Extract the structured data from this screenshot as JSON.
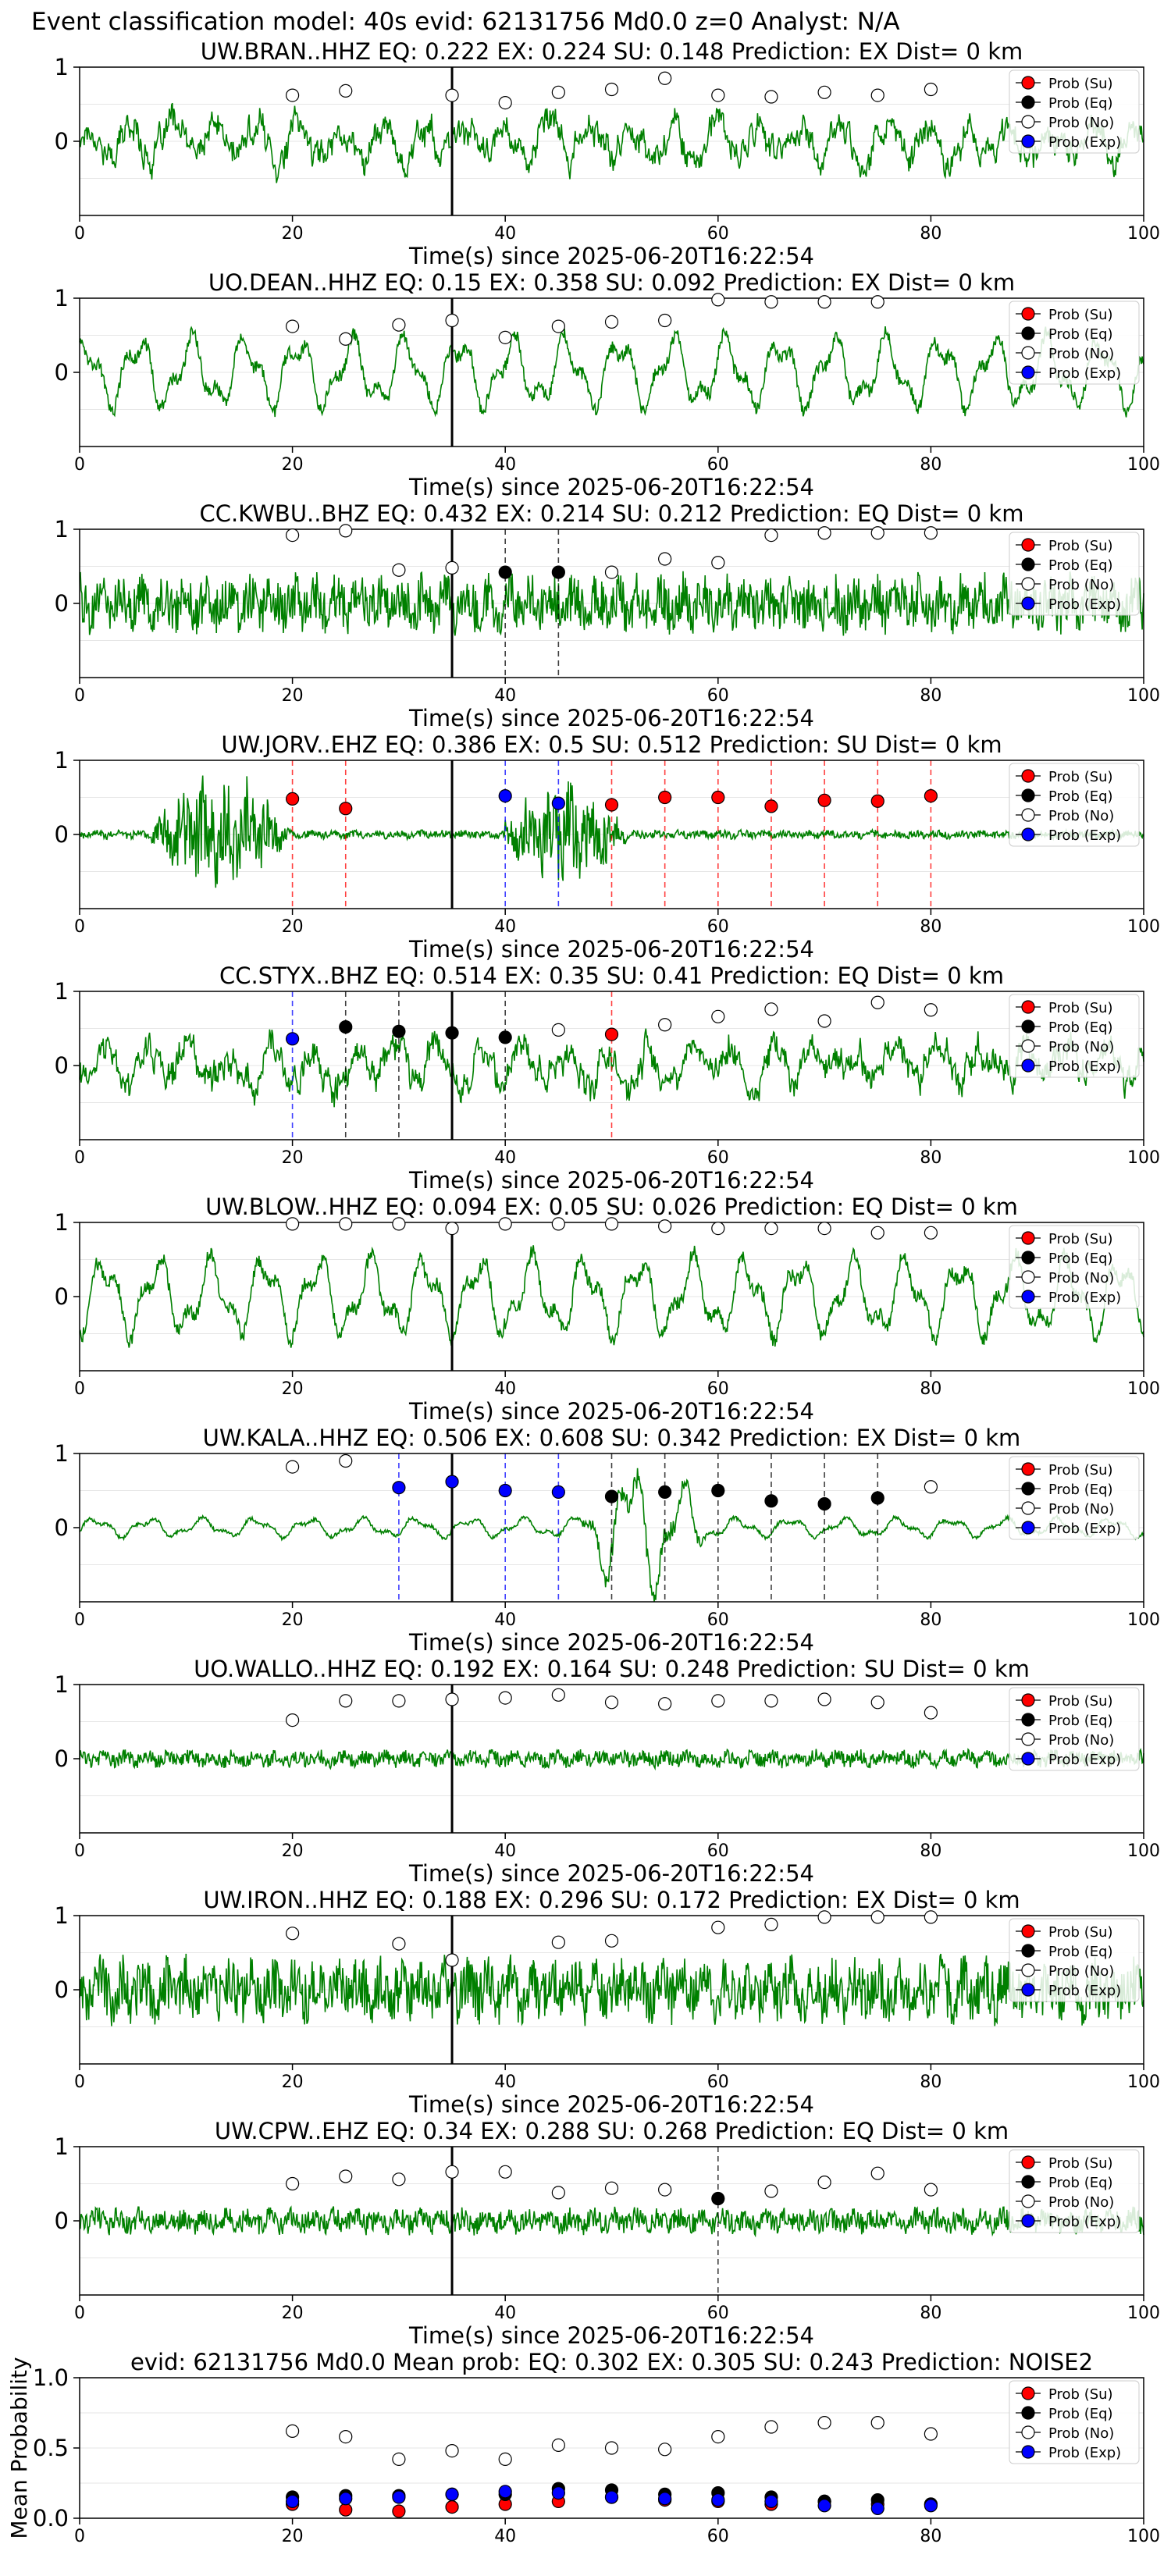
{
  "figure": {
    "suptitle": "Event classification model: 40s evid: 62131756 Md0.0 z=0 Analyst: N/A"
  },
  "colors": {
    "waveform": "#008000",
    "su": "#ff0000",
    "eq": "#000000",
    "no": "#ffffff",
    "exp": "#0000ff",
    "vline": "#000000"
  },
  "legend_labels": [
    "Prob (Su)",
    "Prob (Eq)",
    "Prob (No)",
    "Prob (Exp)"
  ],
  "chart_data": [
    {
      "type": "scatter",
      "station": "UW.BRAN..HHZ",
      "title": "UW.BRAN..HHZ   EQ: 0.222  EX: 0.224  SU: 0.148   Prediction: EX    Dist= 0 km",
      "xlabel": "Time(s) since 2025-06-20T16:22:54",
      "xlim": [
        0,
        100
      ],
      "ylim": [
        -1,
        1
      ],
      "xticks": [
        0,
        20,
        40,
        60,
        80,
        100
      ],
      "yticks": [
        0,
        1
      ],
      "event_marker_x": 35,
      "noise_amp": 0.42,
      "style": "mixed",
      "noise_prob": [
        [
          20,
          0.62
        ],
        [
          25,
          0.68
        ],
        [
          35,
          0.62
        ],
        [
          40,
          0.52
        ],
        [
          45,
          0.66
        ],
        [
          50,
          0.7
        ],
        [
          55,
          0.85
        ],
        [
          60,
          0.62
        ],
        [
          65,
          0.6
        ],
        [
          70,
          0.66
        ],
        [
          75,
          0.62
        ],
        [
          80,
          0.7
        ]
      ],
      "su_prob": [],
      "eq_prob": [],
      "exp_prob": [],
      "su_lines": [],
      "eq_lines": [],
      "exp_lines": []
    },
    {
      "type": "scatter",
      "station": "UO.DEAN..HHZ",
      "title": "UO.DEAN..HHZ   EQ: 0.15  EX: 0.358  SU: 0.092   Prediction: EX    Dist= 0 km",
      "xlabel": "Time(s) since 2025-06-20T16:22:54",
      "xlim": [
        0,
        100
      ],
      "ylim": [
        -1,
        1
      ],
      "xticks": [
        0,
        20,
        40,
        60,
        80,
        100
      ],
      "yticks": [
        0,
        1
      ],
      "event_marker_x": 35,
      "noise_amp": 0.5,
      "style": "smooth",
      "noise_prob": [
        [
          20,
          0.62
        ],
        [
          25,
          0.45
        ],
        [
          30,
          0.64
        ],
        [
          35,
          0.7
        ],
        [
          40,
          0.47
        ],
        [
          45,
          0.62
        ],
        [
          50,
          0.68
        ],
        [
          55,
          0.7
        ],
        [
          60,
          0.98
        ],
        [
          65,
          0.95
        ],
        [
          70,
          0.95
        ],
        [
          75,
          0.95
        ]
      ],
      "su_prob": [],
      "eq_prob": [],
      "exp_prob": [],
      "su_lines": [],
      "eq_lines": [],
      "exp_lines": []
    },
    {
      "type": "scatter",
      "station": "CC.KWBU..BHZ",
      "title": "CC.KWBU..BHZ   EQ: 0.432  EX: 0.214  SU: 0.212   Prediction: EQ    Dist= 0 km",
      "xlabel": "Time(s) since 2025-06-20T16:22:54",
      "xlim": [
        0,
        100
      ],
      "ylim": [
        -1,
        1
      ],
      "xticks": [
        0,
        20,
        40,
        60,
        80,
        100
      ],
      "yticks": [
        0,
        1
      ],
      "event_marker_x": 35,
      "noise_amp": 0.4,
      "style": "noisy",
      "noise_prob": [
        [
          20,
          0.92
        ],
        [
          25,
          0.98
        ],
        [
          30,
          0.45
        ],
        [
          35,
          0.48
        ],
        [
          50,
          0.42
        ],
        [
          55,
          0.6
        ],
        [
          60,
          0.55
        ],
        [
          65,
          0.92
        ],
        [
          70,
          0.95
        ],
        [
          75,
          0.95
        ],
        [
          80,
          0.95
        ]
      ],
      "su_prob": [],
      "eq_prob": [
        [
          40,
          0.42
        ],
        [
          45,
          0.42
        ]
      ],
      "exp_prob": [],
      "su_lines": [],
      "eq_lines": [
        40,
        45
      ],
      "exp_lines": []
    },
    {
      "type": "scatter",
      "station": "UW.JORV..EHZ",
      "title": "UW.JORV..EHZ   EQ: 0.386  EX: 0.5  SU: 0.512   Prediction: SU    Dist= 0 km",
      "xlabel": "Time(s) since 2025-06-20T16:22:54",
      "xlim": [
        0,
        100
      ],
      "ylim": [
        -1,
        1
      ],
      "xticks": [
        0,
        20,
        40,
        60,
        80,
        100
      ],
      "yticks": [
        0,
        1
      ],
      "event_marker_x": 35,
      "noise_amp": 0.06,
      "style": "bursts",
      "bursts": [
        [
          6,
          20,
          0.9
        ],
        [
          39,
          52,
          0.75
        ]
      ],
      "noise_prob": [],
      "su_prob": [
        [
          20,
          0.48
        ],
        [
          25,
          0.35
        ],
        [
          50,
          0.4
        ],
        [
          55,
          0.5
        ],
        [
          60,
          0.5
        ],
        [
          65,
          0.38
        ],
        [
          70,
          0.46
        ],
        [
          75,
          0.45
        ],
        [
          80,
          0.52
        ]
      ],
      "eq_prob": [],
      "exp_prob": [
        [
          40,
          0.52
        ],
        [
          45,
          0.42
        ]
      ],
      "su_lines": [
        20,
        25,
        50,
        55,
        60,
        65,
        70,
        75,
        80
      ],
      "eq_lines": [],
      "exp_lines": [
        40,
        45
      ]
    },
    {
      "type": "scatter",
      "station": "CC.STYX..BHZ",
      "title": "CC.STYX..BHZ   EQ: 0.514  EX: 0.35  SU: 0.41   Prediction: EQ    Dist= 0 km",
      "xlabel": "Time(s) since 2025-06-20T16:22:54",
      "xlim": [
        0,
        100
      ],
      "ylim": [
        -1,
        1
      ],
      "xticks": [
        0,
        20,
        40,
        60,
        80,
        100
      ],
      "yticks": [
        0,
        1
      ],
      "event_marker_x": 35,
      "noise_amp": 0.45,
      "style": "mixed",
      "noise_prob": [
        [
          45,
          0.48
        ],
        [
          55,
          0.55
        ],
        [
          60,
          0.66
        ],
        [
          65,
          0.76
        ],
        [
          70,
          0.6
        ],
        [
          75,
          0.85
        ],
        [
          80,
          0.75
        ]
      ],
      "su_prob": [
        [
          50,
          0.42
        ]
      ],
      "eq_prob": [
        [
          25,
          0.52
        ],
        [
          30,
          0.46
        ],
        [
          35,
          0.44
        ],
        [
          40,
          0.38
        ]
      ],
      "exp_prob": [
        [
          20,
          0.36
        ]
      ],
      "su_lines": [
        50
      ],
      "eq_lines": [
        25,
        30,
        40
      ],
      "exp_lines": [
        20
      ]
    },
    {
      "type": "scatter",
      "station": "UW.BLOW..HHZ",
      "title": "UW.BLOW..HHZ   EQ: 0.094  EX: 0.05  SU: 0.026   Prediction: EQ    Dist= 0 km",
      "xlabel": "Time(s) since 2025-06-20T16:22:54",
      "xlim": [
        0,
        100
      ],
      "ylim": [
        -1,
        1
      ],
      "xticks": [
        0,
        20,
        40,
        60,
        80,
        100
      ],
      "yticks": [
        0,
        1
      ],
      "event_marker_x": 35,
      "noise_amp": 0.55,
      "style": "smooth",
      "noise_prob": [
        [
          20,
          0.98
        ],
        [
          25,
          0.98
        ],
        [
          30,
          0.98
        ],
        [
          35,
          0.92
        ],
        [
          40,
          0.98
        ],
        [
          45,
          0.98
        ],
        [
          50,
          0.98
        ],
        [
          55,
          0.95
        ],
        [
          60,
          0.92
        ],
        [
          65,
          0.92
        ],
        [
          70,
          0.92
        ],
        [
          75,
          0.86
        ],
        [
          80,
          0.86
        ]
      ],
      "su_prob": [],
      "eq_prob": [],
      "exp_prob": [],
      "su_lines": [],
      "eq_lines": [],
      "exp_lines": []
    },
    {
      "type": "scatter",
      "station": "UW.KALA..HHZ",
      "title": "UW.KALA..HHZ   EQ: 0.506  EX: 0.608  SU: 0.342   Prediction: EX    Dist= 0 km",
      "xlabel": "Time(s) since 2025-06-20T16:22:54",
      "xlim": [
        0,
        100
      ],
      "ylim": [
        -1,
        1
      ],
      "xticks": [
        0,
        20,
        40,
        60,
        80,
        100
      ],
      "yticks": [
        0,
        1
      ],
      "event_marker_x": 35,
      "noise_amp": 0.12,
      "style": "kala",
      "bursts": [
        [
          46,
          60,
          0.85
        ]
      ],
      "noise_prob": [
        [
          20,
          0.82
        ],
        [
          25,
          0.9
        ],
        [
          80,
          0.55
        ]
      ],
      "su_prob": [],
      "eq_prob": [
        [
          50,
          0.42
        ],
        [
          55,
          0.48
        ],
        [
          60,
          0.5
        ],
        [
          65,
          0.36
        ],
        [
          70,
          0.32
        ],
        [
          75,
          0.4
        ]
      ],
      "exp_prob": [
        [
          30,
          0.54
        ],
        [
          35,
          0.62
        ],
        [
          40,
          0.5
        ],
        [
          45,
          0.48
        ]
      ],
      "su_lines": [],
      "eq_lines": [
        50,
        55,
        60,
        65,
        70,
        75
      ],
      "exp_lines": [
        30,
        40,
        45
      ]
    },
    {
      "type": "scatter",
      "station": "UO.WALLO..HHZ",
      "title": "UO.WALLO..HHZ   EQ: 0.192  EX: 0.164  SU: 0.248   Prediction: SU    Dist= 0 km",
      "xlabel": "Time(s) since 2025-06-20T16:22:54",
      "xlim": [
        0,
        100
      ],
      "ylim": [
        -1,
        1
      ],
      "xticks": [
        0,
        20,
        40,
        60,
        80,
        100
      ],
      "yticks": [
        0,
        1
      ],
      "event_marker_x": 35,
      "noise_amp": 0.12,
      "style": "noisy",
      "noise_prob": [
        [
          20,
          0.52
        ],
        [
          25,
          0.78
        ],
        [
          30,
          0.78
        ],
        [
          35,
          0.8
        ],
        [
          40,
          0.82
        ],
        [
          45,
          0.86
        ],
        [
          50,
          0.76
        ],
        [
          55,
          0.74
        ],
        [
          60,
          0.78
        ],
        [
          65,
          0.78
        ],
        [
          70,
          0.8
        ],
        [
          75,
          0.76
        ],
        [
          80,
          0.62
        ]
      ],
      "su_prob": [],
      "eq_prob": [],
      "exp_prob": [],
      "su_lines": [],
      "eq_lines": [],
      "exp_lines": []
    },
    {
      "type": "scatter",
      "station": "UW.IRON..HHZ",
      "title": "UW.IRON..HHZ   EQ: 0.188  EX: 0.296  SU: 0.172   Prediction: EX    Dist= 0 km",
      "xlabel": "Time(s) since 2025-06-20T16:22:54",
      "xlim": [
        0,
        100
      ],
      "ylim": [
        -1,
        1
      ],
      "xticks": [
        0,
        20,
        40,
        60,
        80,
        100
      ],
      "yticks": [
        0,
        1
      ],
      "event_marker_x": 35,
      "noise_amp": 0.45,
      "style": "noisy",
      "noise_prob": [
        [
          20,
          0.76
        ],
        [
          30,
          0.62
        ],
        [
          35,
          0.4
        ],
        [
          45,
          0.64
        ],
        [
          50,
          0.66
        ],
        [
          60,
          0.84
        ],
        [
          65,
          0.88
        ],
        [
          70,
          0.98
        ],
        [
          75,
          0.98
        ],
        [
          80,
          0.98
        ]
      ],
      "su_prob": [],
      "eq_prob": [],
      "exp_prob": [],
      "su_lines": [],
      "eq_lines": [],
      "exp_lines": []
    },
    {
      "type": "scatter",
      "station": "UW.CPW..EHZ",
      "title": "UW.CPW..EHZ   EQ: 0.34  EX: 0.288  SU: 0.268   Prediction: EQ    Dist= 0 km",
      "xlabel": "Time(s) since 2025-06-20T16:22:54",
      "xlim": [
        0,
        100
      ],
      "ylim": [
        -1,
        1
      ],
      "xticks": [
        0,
        20,
        40,
        60,
        80,
        100
      ],
      "yticks": [
        0,
        1
      ],
      "event_marker_x": 35,
      "noise_amp": 0.18,
      "style": "noisy",
      "noise_prob": [
        [
          20,
          0.5
        ],
        [
          25,
          0.6
        ],
        [
          30,
          0.56
        ],
        [
          35,
          0.66
        ],
        [
          40,
          0.66
        ],
        [
          45,
          0.38
        ],
        [
          50,
          0.44
        ],
        [
          55,
          0.42
        ],
        [
          65,
          0.4
        ],
        [
          70,
          0.52
        ],
        [
          75,
          0.64
        ],
        [
          80,
          0.42
        ]
      ],
      "su_prob": [],
      "eq_prob": [
        [
          60,
          0.3
        ]
      ],
      "exp_prob": [],
      "su_lines": [],
      "eq_lines": [
        60
      ],
      "exp_lines": []
    },
    {
      "type": "scatter",
      "station": "mean",
      "title": "evid: 62131756  Md0.0   Mean prob:   EQ: 0.302  EX: 0.305  SU: 0.243   Prediction: NOISE2",
      "xlabel": "",
      "ylabel": "Mean Probability",
      "xlim": [
        0,
        100
      ],
      "ylim": [
        0,
        1
      ],
      "xticks": [
        0,
        20,
        40,
        60,
        80,
        100
      ],
      "yticks": [
        0,
        0.5,
        1
      ],
      "ytick_labels": [
        "0.0",
        "0.5",
        "1.0"
      ],
      "noise_prob": [
        [
          20,
          0.62
        ],
        [
          25,
          0.58
        ],
        [
          30,
          0.42
        ],
        [
          35,
          0.48
        ],
        [
          40,
          0.42
        ],
        [
          45,
          0.52
        ],
        [
          50,
          0.5
        ],
        [
          55,
          0.49
        ],
        [
          60,
          0.58
        ],
        [
          65,
          0.65
        ],
        [
          70,
          0.68
        ],
        [
          75,
          0.68
        ],
        [
          80,
          0.6
        ]
      ],
      "su_prob": [
        [
          20,
          0.1
        ],
        [
          25,
          0.06
        ],
        [
          30,
          0.05
        ],
        [
          35,
          0.08
        ],
        [
          40,
          0.1
        ],
        [
          45,
          0.12
        ],
        [
          50,
          0.15
        ],
        [
          55,
          0.13
        ],
        [
          60,
          0.12
        ],
        [
          65,
          0.1
        ],
        [
          70,
          0.12
        ],
        [
          75,
          0.1
        ],
        [
          80,
          0.1
        ]
      ],
      "eq_prob": [
        [
          20,
          0.15
        ],
        [
          25,
          0.16
        ],
        [
          30,
          0.16
        ],
        [
          35,
          0.17
        ],
        [
          40,
          0.17
        ],
        [
          45,
          0.21
        ],
        [
          50,
          0.2
        ],
        [
          55,
          0.17
        ],
        [
          60,
          0.18
        ],
        [
          65,
          0.15
        ],
        [
          70,
          0.12
        ],
        [
          75,
          0.13
        ],
        [
          80,
          0.1
        ]
      ],
      "exp_prob": [
        [
          20,
          0.12
        ],
        [
          25,
          0.14
        ],
        [
          30,
          0.15
        ],
        [
          35,
          0.17
        ],
        [
          40,
          0.19
        ],
        [
          45,
          0.18
        ],
        [
          50,
          0.15
        ],
        [
          55,
          0.14
        ],
        [
          60,
          0.13
        ],
        [
          65,
          0.12
        ],
        [
          70,
          0.09
        ],
        [
          75,
          0.07
        ],
        [
          80,
          0.09
        ]
      ]
    }
  ]
}
